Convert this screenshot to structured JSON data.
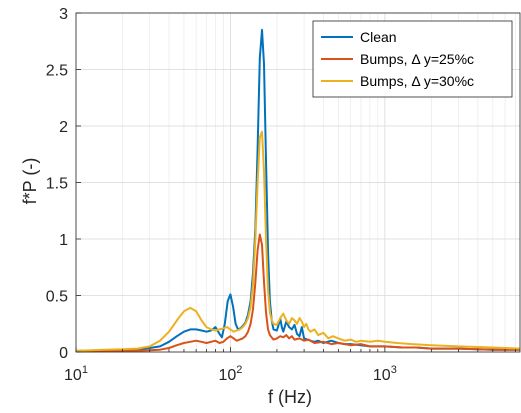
{
  "chart_data": {
    "type": "line",
    "xscale": "log",
    "xlim": [
      10,
      7500
    ],
    "ylim": [
      0,
      3
    ],
    "xlabel": "f (Hz)",
    "ylabel": "f*P (-)",
    "xticks": [
      {
        "value": 10,
        "base": "10",
        "exp": "1"
      },
      {
        "value": 100,
        "base": "10",
        "exp": "2"
      },
      {
        "value": 1000,
        "base": "10",
        "exp": "3"
      }
    ],
    "yticks": [
      {
        "value": 0,
        "label": "0"
      },
      {
        "value": 0.5,
        "label": "0.5"
      },
      {
        "value": 1,
        "label": "1"
      },
      {
        "value": 1.5,
        "label": "1.5"
      },
      {
        "value": 2,
        "label": "2"
      },
      {
        "value": 2.5,
        "label": "2.5"
      },
      {
        "value": 3,
        "label": "3"
      }
    ],
    "grid": true,
    "legend_position": "top-right",
    "series": [
      {
        "name": "Clean",
        "color": "#0072BD",
        "points": [
          [
            10,
            0.01
          ],
          [
            15,
            0.015
          ],
          [
            20,
            0.02
          ],
          [
            25,
            0.025
          ],
          [
            30,
            0.035
          ],
          [
            35,
            0.05
          ],
          [
            40,
            0.09
          ],
          [
            45,
            0.14
          ],
          [
            50,
            0.18
          ],
          [
            55,
            0.2
          ],
          [
            60,
            0.2
          ],
          [
            65,
            0.19
          ],
          [
            70,
            0.18
          ],
          [
            75,
            0.19
          ],
          [
            80,
            0.22
          ],
          [
            85,
            0.16
          ],
          [
            88,
            0.13
          ],
          [
            92,
            0.25
          ],
          [
            96,
            0.45
          ],
          [
            100,
            0.51
          ],
          [
            104,
            0.4
          ],
          [
            108,
            0.25
          ],
          [
            112,
            0.2
          ],
          [
            116,
            0.21
          ],
          [
            120,
            0.23
          ],
          [
            125,
            0.26
          ],
          [
            130,
            0.33
          ],
          [
            135,
            0.45
          ],
          [
            140,
            0.7
          ],
          [
            145,
            1.1
          ],
          [
            150,
            1.8
          ],
          [
            155,
            2.6
          ],
          [
            160,
            2.85
          ],
          [
            165,
            2.55
          ],
          [
            170,
            1.7
          ],
          [
            175,
            0.9
          ],
          [
            180,
            0.45
          ],
          [
            185,
            0.28
          ],
          [
            190,
            0.2
          ],
          [
            200,
            0.19
          ],
          [
            205,
            0.24
          ],
          [
            210,
            0.3
          ],
          [
            215,
            0.22
          ],
          [
            220,
            0.18
          ],
          [
            230,
            0.27
          ],
          [
            240,
            0.22
          ],
          [
            250,
            0.2
          ],
          [
            260,
            0.24
          ],
          [
            270,
            0.16
          ],
          [
            280,
            0.14
          ],
          [
            290,
            0.22
          ],
          [
            300,
            0.12
          ],
          [
            315,
            0.11
          ],
          [
            330,
            0.1
          ],
          [
            350,
            0.09
          ],
          [
            370,
            0.1
          ],
          [
            400,
            0.08
          ],
          [
            450,
            0.1
          ],
          [
            500,
            0.08
          ],
          [
            550,
            0.07
          ],
          [
            600,
            0.07
          ],
          [
            700,
            0.06
          ],
          [
            800,
            0.05
          ],
          [
            1000,
            0.05
          ],
          [
            1300,
            0.04
          ],
          [
            1600,
            0.04
          ],
          [
            2000,
            0.03
          ],
          [
            3000,
            0.03
          ],
          [
            5000,
            0.02
          ],
          [
            7500,
            0.02
          ]
        ]
      },
      {
        "name": "Bumps, Δ y=25%c",
        "color": "#D95319",
        "points": [
          [
            10,
            0.005
          ],
          [
            15,
            0.008
          ],
          [
            20,
            0.01
          ],
          [
            25,
            0.012
          ],
          [
            30,
            0.015
          ],
          [
            35,
            0.02
          ],
          [
            40,
            0.035
          ],
          [
            45,
            0.06
          ],
          [
            50,
            0.08
          ],
          [
            55,
            0.09
          ],
          [
            60,
            0.1
          ],
          [
            65,
            0.09
          ],
          [
            70,
            0.08
          ],
          [
            75,
            0.09
          ],
          [
            80,
            0.1
          ],
          [
            85,
            0.08
          ],
          [
            90,
            0.09
          ],
          [
            95,
            0.12
          ],
          [
            100,
            0.14
          ],
          [
            105,
            0.12
          ],
          [
            110,
            0.1
          ],
          [
            115,
            0.11
          ],
          [
            120,
            0.12
          ],
          [
            125,
            0.14
          ],
          [
            130,
            0.18
          ],
          [
            135,
            0.25
          ],
          [
            140,
            0.38
          ],
          [
            145,
            0.62
          ],
          [
            150,
            0.9
          ],
          [
            155,
            1.04
          ],
          [
            160,
            0.95
          ],
          [
            165,
            0.62
          ],
          [
            170,
            0.35
          ],
          [
            175,
            0.2
          ],
          [
            180,
            0.15
          ],
          [
            190,
            0.11
          ],
          [
            200,
            0.12
          ],
          [
            210,
            0.14
          ],
          [
            220,
            0.13
          ],
          [
            230,
            0.15
          ],
          [
            240,
            0.12
          ],
          [
            250,
            0.14
          ],
          [
            260,
            0.11
          ],
          [
            280,
            0.12
          ],
          [
            300,
            0.1
          ],
          [
            320,
            0.11
          ],
          [
            350,
            0.08
          ],
          [
            400,
            0.09
          ],
          [
            450,
            0.07
          ],
          [
            500,
            0.08
          ],
          [
            600,
            0.06
          ],
          [
            700,
            0.07
          ],
          [
            800,
            0.05
          ],
          [
            1000,
            0.05
          ],
          [
            1300,
            0.04
          ],
          [
            1600,
            0.04
          ],
          [
            2000,
            0.03
          ],
          [
            3000,
            0.03
          ],
          [
            5000,
            0.02
          ],
          [
            7500,
            0.02
          ]
        ]
      },
      {
        "name": "Bumps, Δ y=30%c",
        "color": "#EDB120",
        "points": [
          [
            10,
            0.01
          ],
          [
            15,
            0.02
          ],
          [
            20,
            0.025
          ],
          [
            25,
            0.03
          ],
          [
            30,
            0.05
          ],
          [
            35,
            0.1
          ],
          [
            40,
            0.18
          ],
          [
            45,
            0.28
          ],
          [
            50,
            0.36
          ],
          [
            55,
            0.39
          ],
          [
            60,
            0.36
          ],
          [
            65,
            0.28
          ],
          [
            70,
            0.22
          ],
          [
            75,
            0.2
          ],
          [
            80,
            0.19
          ],
          [
            85,
            0.2
          ],
          [
            90,
            0.21
          ],
          [
            95,
            0.22
          ],
          [
            100,
            0.2
          ],
          [
            105,
            0.18
          ],
          [
            110,
            0.19
          ],
          [
            115,
            0.2
          ],
          [
            120,
            0.22
          ],
          [
            125,
            0.25
          ],
          [
            130,
            0.3
          ],
          [
            135,
            0.4
          ],
          [
            140,
            0.6
          ],
          [
            145,
            1.0
          ],
          [
            150,
            1.5
          ],
          [
            155,
            1.9
          ],
          [
            160,
            1.95
          ],
          [
            165,
            1.6
          ],
          [
            170,
            1.0
          ],
          [
            175,
            0.55
          ],
          [
            180,
            0.35
          ],
          [
            185,
            0.28
          ],
          [
            190,
            0.25
          ],
          [
            200,
            0.24
          ],
          [
            210,
            0.3
          ],
          [
            220,
            0.34
          ],
          [
            230,
            0.28
          ],
          [
            240,
            0.25
          ],
          [
            250,
            0.3
          ],
          [
            260,
            0.28
          ],
          [
            270,
            0.25
          ],
          [
            280,
            0.3
          ],
          [
            290,
            0.27
          ],
          [
            300,
            0.22
          ],
          [
            310,
            0.25
          ],
          [
            320,
            0.2
          ],
          [
            330,
            0.18
          ],
          [
            350,
            0.2
          ],
          [
            370,
            0.15
          ],
          [
            400,
            0.17
          ],
          [
            430,
            0.12
          ],
          [
            460,
            0.14
          ],
          [
            500,
            0.12
          ],
          [
            550,
            0.1
          ],
          [
            600,
            0.11
          ],
          [
            650,
            0.09
          ],
          [
            700,
            0.1
          ],
          [
            800,
            0.09
          ],
          [
            900,
            0.1
          ],
          [
            1000,
            0.09
          ],
          [
            1200,
            0.08
          ],
          [
            1500,
            0.07
          ],
          [
            2000,
            0.06
          ],
          [
            3000,
            0.05
          ],
          [
            5000,
            0.04
          ],
          [
            7500,
            0.03
          ]
        ]
      }
    ]
  }
}
